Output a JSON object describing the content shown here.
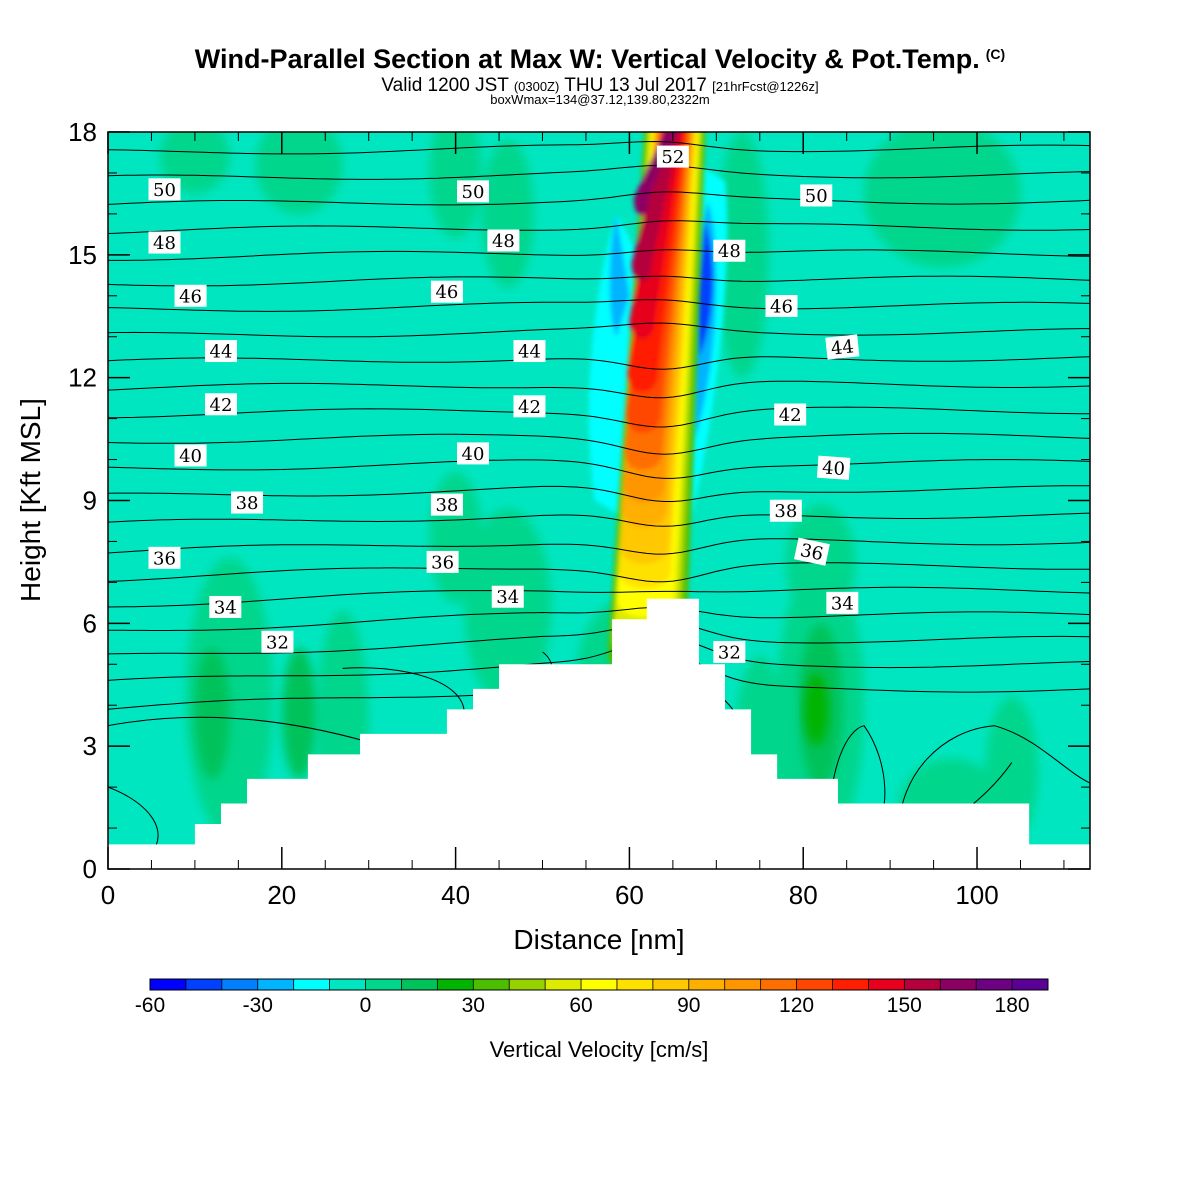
{
  "header": {
    "title_main": "Wind-Parallel Section at Max W: Vertical Velocity & Pot.Temp.",
    "title_copyright": "(C)",
    "valid_prefix": "Valid 1200 JST",
    "valid_utc": "(0300Z)",
    "valid_date": "THU 13 Jul 2017",
    "valid_forecast": "[21hrFcst@1226z]",
    "box_info": "boxWmax=134@37.12,139.80,2322m"
  },
  "colors": {
    "background_field": "#00E6C0",
    "terrain": "#FFFFFF",
    "contour": "#000000"
  },
  "chart_data": {
    "type": "heatmap",
    "xlabel": "Distance [nm]",
    "ylabel": "Height [Kft MSL]",
    "xlim": [
      0,
      113
    ],
    "ylim": [
      0,
      18
    ],
    "x_ticks": [
      0,
      20,
      40,
      60,
      80,
      100
    ],
    "y_ticks": [
      0,
      3,
      6,
      9,
      12,
      15,
      18
    ],
    "colorbar": {
      "title": "Vertical Velocity [cm/s]",
      "labels": [
        -60,
        -30,
        0,
        30,
        60,
        90,
        120,
        150,
        180
      ],
      "levels": [
        -60,
        -50,
        -40,
        -30,
        -20,
        -10,
        0,
        10,
        20,
        30,
        40,
        50,
        60,
        70,
        80,
        90,
        100,
        110,
        120,
        130,
        140,
        150,
        160,
        170,
        180,
        190
      ],
      "colors": [
        "#0000FF",
        "#0040FF",
        "#0080FF",
        "#00B4FF",
        "#00FFFF",
        "#00E6C0",
        "#00D68C",
        "#00C25A",
        "#00B400",
        "#4BBE00",
        "#96D200",
        "#DCEB00",
        "#FFFF00",
        "#FFE100",
        "#FFC800",
        "#FFAF00",
        "#FF9600",
        "#FF6E00",
        "#FF4600",
        "#FF1E00",
        "#E6001E",
        "#B4003C",
        "#8C0064",
        "#6E0082",
        "#5A0096"
      ]
    },
    "updraft": {
      "core_x_nm": 64.5,
      "peak_velocity_cm_s": 134,
      "peak_location": "37.12,139.80",
      "peak_height_m": 2322
    },
    "terrain_profile": {
      "x": [
        0,
        10,
        10,
        13,
        13,
        16,
        16,
        23,
        23,
        29,
        29,
        39,
        39,
        42,
        42,
        45,
        45,
        58,
        58,
        62,
        62,
        68,
        68,
        71,
        71,
        74,
        74,
        77,
        77,
        84,
        84,
        106,
        106,
        113
      ],
      "height_kft": [
        0.6,
        0.6,
        1.1,
        1.1,
        1.6,
        1.6,
        2.2,
        2.2,
        2.8,
        2.8,
        3.3,
        3.3,
        3.9,
        3.9,
        4.4,
        4.4,
        5.0,
        5.0,
        6.1,
        6.1,
        6.6,
        6.6,
        5.0,
        5.0,
        3.9,
        3.9,
        2.8,
        2.8,
        2.2,
        2.2,
        1.6,
        1.6,
        0.6,
        0.6
      ]
    },
    "isentropes": [
      {
        "label": "32",
        "label_positions": [
          [
            19.5,
            5.55
          ],
          [
            71.5,
            5.3
          ]
        ]
      },
      {
        "label": "34",
        "label_positions": [
          [
            13.5,
            6.4
          ],
          [
            46,
            6.65
          ],
          [
            84.5,
            6.5
          ]
        ]
      },
      {
        "label": "36",
        "label_positions": [
          [
            6.5,
            7.6
          ],
          [
            38.5,
            7.5
          ],
          [
            81,
            7.75
          ]
        ]
      },
      {
        "label": "38",
        "label_positions": [
          [
            16,
            8.95
          ],
          [
            39,
            8.9
          ],
          [
            78,
            8.75
          ]
        ]
      },
      {
        "label": "40",
        "label_positions": [
          [
            9.5,
            10.1
          ],
          [
            42,
            10.15
          ],
          [
            83.5,
            9.8
          ]
        ]
      },
      {
        "label": "42",
        "label_positions": [
          [
            13,
            11.35
          ],
          [
            48.5,
            11.3
          ],
          [
            78.5,
            11.1
          ]
        ]
      },
      {
        "label": "44",
        "label_positions": [
          [
            13,
            12.65
          ],
          [
            48.5,
            12.65
          ],
          [
            84.5,
            12.75
          ]
        ]
      },
      {
        "label": "46",
        "label_positions": [
          [
            9.5,
            14.0
          ],
          [
            39,
            14.1
          ],
          [
            77.5,
            13.75
          ]
        ]
      },
      {
        "label": "48",
        "label_positions": [
          [
            6.5,
            15.3
          ],
          [
            45.5,
            15.35
          ],
          [
            71.5,
            15.1
          ]
        ]
      },
      {
        "label": "50",
        "label_positions": [
          [
            6.5,
            16.6
          ],
          [
            42,
            16.55
          ],
          [
            81.5,
            16.45
          ]
        ]
      },
      {
        "label": "52",
        "label_positions": [
          [
            65,
            17.4
          ]
        ]
      }
    ]
  }
}
